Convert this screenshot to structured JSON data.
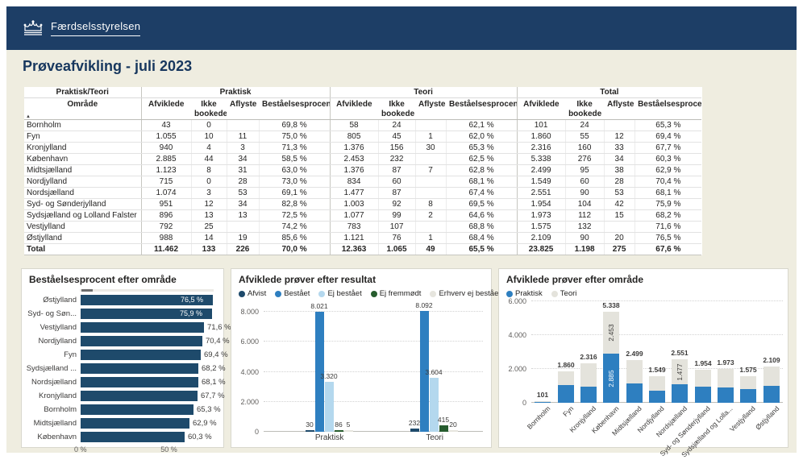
{
  "header": {
    "brand": "Færdselsstyrelsen",
    "title": "Prøveafvikling - juli 2023"
  },
  "colors": {
    "header_navy": "#1d3e66",
    "title_navy": "#17375e",
    "cream_bg": "#efede0",
    "navy_bar": "#1e4a6b",
    "blue": "#2e7fc0",
    "light_blue": "#b4d8ee",
    "green": "#265c2e",
    "light_gray_bar": "#e6e5de",
    "teori_gray": "#e4e3dc"
  },
  "table": {
    "group_headers": [
      "Praktisk/Teori",
      "Praktisk",
      "Teori",
      "Total"
    ],
    "first_col_header": "Område",
    "sort_icon": "▲",
    "metric_headers": [
      "Afviklede",
      "Ikke bookede",
      "Aflyste",
      "Beståelsesprocent"
    ],
    "rows": [
      {
        "name": "Bornholm",
        "cells": [
          "43",
          "0",
          "",
          "69,8 %",
          "58",
          "24",
          "",
          "62,1 %",
          "101",
          "24",
          "",
          "65,3 %"
        ]
      },
      {
        "name": "Fyn",
        "cells": [
          "1.055",
          "10",
          "11",
          "75,0 %",
          "805",
          "45",
          "1",
          "62,0 %",
          "1.860",
          "55",
          "12",
          "69,4 %"
        ]
      },
      {
        "name": "Kronjylland",
        "cells": [
          "940",
          "4",
          "3",
          "71,3 %",
          "1.376",
          "156",
          "30",
          "65,3 %",
          "2.316",
          "160",
          "33",
          "67,7 %"
        ]
      },
      {
        "name": "København",
        "cells": [
          "2.885",
          "44",
          "34",
          "58,5 %",
          "2.453",
          "232",
          "",
          "62,5 %",
          "5.338",
          "276",
          "34",
          "60,3 %"
        ]
      },
      {
        "name": "Midtsjælland",
        "cells": [
          "1.123",
          "8",
          "31",
          "63,0 %",
          "1.376",
          "87",
          "7",
          "62,8 %",
          "2.499",
          "95",
          "38",
          "62,9 %"
        ]
      },
      {
        "name": "Nordjylland",
        "cells": [
          "715",
          "0",
          "28",
          "73,0 %",
          "834",
          "60",
          "",
          "68,1 %",
          "1.549",
          "60",
          "28",
          "70,4 %"
        ]
      },
      {
        "name": "Nordsjælland",
        "cells": [
          "1.074",
          "3",
          "53",
          "69,1 %",
          "1.477",
          "87",
          "",
          "67,4 %",
          "2.551",
          "90",
          "53",
          "68,1 %"
        ]
      },
      {
        "name": "Syd- og Sønderjylland",
        "cells": [
          "951",
          "12",
          "34",
          "82,8 %",
          "1.003",
          "92",
          "8",
          "69,5 %",
          "1.954",
          "104",
          "42",
          "75,9 %"
        ]
      },
      {
        "name": "Sydsjælland og Lolland Falster",
        "cells": [
          "896",
          "13",
          "13",
          "72,5 %",
          "1.077",
          "99",
          "2",
          "64,6 %",
          "1.973",
          "112",
          "15",
          "68,2 %"
        ]
      },
      {
        "name": "Vestjylland",
        "cells": [
          "792",
          "25",
          "",
          "74,2 %",
          "783",
          "107",
          "",
          "68,8 %",
          "1.575",
          "132",
          "",
          "71,6 %"
        ]
      },
      {
        "name": "Østjylland",
        "cells": [
          "988",
          "14",
          "19",
          "85,6 %",
          "1.121",
          "76",
          "1",
          "68,4 %",
          "2.109",
          "90",
          "20",
          "76,5 %"
        ]
      }
    ],
    "total_row": {
      "name": "Total",
      "cells": [
        "11.462",
        "133",
        "226",
        "70,0 %",
        "12.363",
        "1.065",
        "49",
        "65,5 %",
        "23.825",
        "1.198",
        "275",
        "67,6 %"
      ]
    }
  },
  "chart_data": [
    {
      "type": "bar",
      "orientation": "horizontal",
      "title": "Beståelsesprocent efter område",
      "categories": [
        "Østjylland",
        "Syd- og Søn...",
        "Vestjylland",
        "Nordjylland",
        "Fyn",
        "Sydsjælland ...",
        "Nordsjælland",
        "Kronjylland",
        "Bornholm",
        "Midtsjælland",
        "København"
      ],
      "values": [
        76.5,
        75.9,
        71.6,
        70.4,
        69.4,
        68.2,
        68.1,
        67.7,
        65.3,
        62.9,
        60.3
      ],
      "value_labels": [
        "76,5 %",
        "75,9 %",
        "71,6 %",
        "70,4 %",
        "69,4 %",
        "68,2 %",
        "68,1 %",
        "67,7 %",
        "65,3 %",
        "62,9 %",
        "60,3 %"
      ],
      "axis_max": 76.5,
      "x_ticks": [
        {
          "label": "0 %",
          "v": 0
        },
        {
          "label": "50 %",
          "v": 50
        }
      ],
      "bar_color": "#1e4a6b"
    },
    {
      "type": "bar",
      "title": "Afviklede prøver efter resultat",
      "categories": [
        "Praktisk",
        "Teori"
      ],
      "series": [
        {
          "name": "Afvist",
          "color": "#1e4a6b",
          "values": [
            30,
            232
          ],
          "labels": [
            "30",
            "232"
          ]
        },
        {
          "name": "Bestået",
          "color": "#2e7fc0",
          "values": [
            8021,
            8092
          ],
          "labels": [
            "8.021",
            "8.092"
          ]
        },
        {
          "name": "Ej bestået",
          "color": "#b4d8ee",
          "values": [
            3320,
            3604
          ],
          "labels": [
            "3.320",
            "3.604"
          ]
        },
        {
          "name": "Ej fremmødt",
          "color": "#265c2e",
          "values": [
            86,
            415
          ],
          "labels": [
            "86",
            "415"
          ]
        },
        {
          "name": "Erhverv ej bestået",
          "color": "#e6e5de",
          "values": [
            5,
            20
          ],
          "labels": [
            "5",
            "20"
          ]
        }
      ],
      "axis_max": 8500,
      "y_ticks": [
        {
          "label": "0",
          "v": 0
        },
        {
          "label": "2.000",
          "v": 2000
        },
        {
          "label": "4.000",
          "v": 4000
        },
        {
          "label": "6.000",
          "v": 6000
        },
        {
          "label": "8.000",
          "v": 8000
        }
      ],
      "legend_position": "top"
    },
    {
      "type": "stacked-bar",
      "title": "Afviklede prøver efter område",
      "categories": [
        "Bornholm",
        "Fyn",
        "Kronjylland",
        "København",
        "Midtsjælland",
        "Nordjylland",
        "Nordsjælland",
        "Syd- og Sønderjylland",
        "Sydsjælland og Lolla...",
        "Vestjylland",
        "Østjylland"
      ],
      "series": [
        {
          "name": "Praktisk",
          "color": "#2e7fc0",
          "values": [
            43,
            1055,
            940,
            2885,
            1123,
            715,
            1074,
            951,
            896,
            792,
            988
          ]
        },
        {
          "name": "Teori",
          "color": "#e4e3dc",
          "values": [
            58,
            805,
            1376,
            2453,
            1376,
            834,
            1477,
            1003,
            1077,
            783,
            1121
          ]
        }
      ],
      "total_labels": [
        "101",
        "1.860",
        "2.316",
        "5.338",
        "2.499",
        "1.549",
        "2.551",
        "1.954",
        "1.973",
        "1.575",
        "2.109"
      ],
      "segment_labels": [
        {
          "cat": 3,
          "series": 0,
          "text": "2.885",
          "color": "#ffffff"
        },
        {
          "cat": 3,
          "series": 1,
          "text": "2.453",
          "color": "#3b3a39"
        },
        {
          "cat": 6,
          "series": 1,
          "text": "1.477",
          "color": "#3b3a39"
        }
      ],
      "axis_max": 6000,
      "y_ticks": [
        {
          "label": "0",
          "v": 0
        },
        {
          "label": "2.000",
          "v": 2000
        },
        {
          "label": "4.000",
          "v": 4000
        },
        {
          "label": "6.000",
          "v": 6000
        }
      ],
      "legend_position": "top"
    }
  ]
}
